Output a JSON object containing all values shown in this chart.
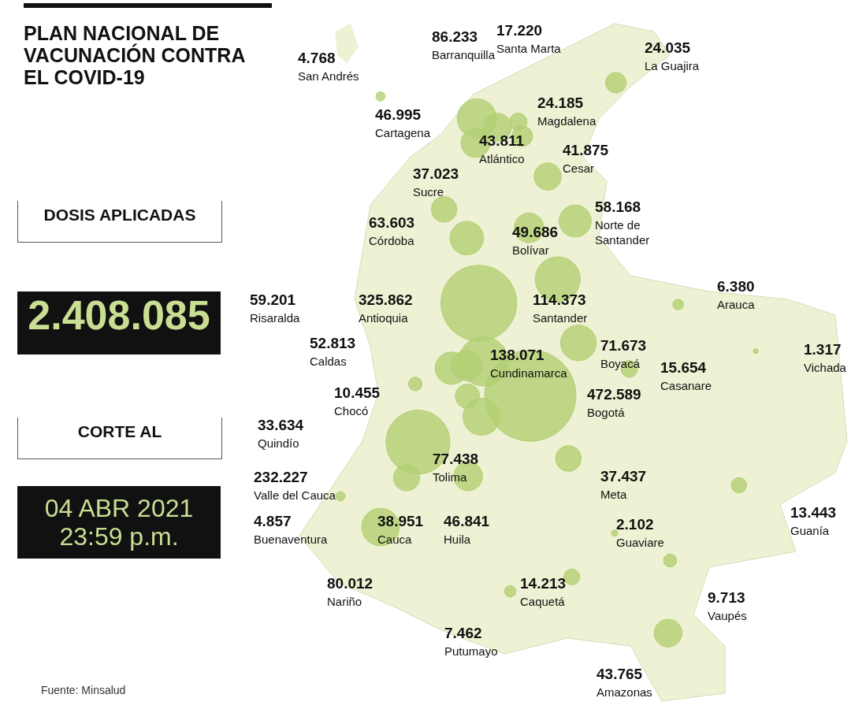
{
  "chart_data": {
    "type": "other",
    "title": "PLAN NACIONAL DE VACUNACIÓN CONTRA EL COVID-19",
    "annotations": [
      "DOSIS APLICADAS",
      "2.408.085",
      "CORTE AL",
      "04 ABR 2021 23:59 p.m.",
      "Fuente: Minsalud"
    ],
    "color": "#b3cf73",
    "categories": [
      "San Andrés",
      "Barranquilla",
      "Santa Marta",
      "La Guajira",
      "Cartagena",
      "Atlántico",
      "Magdalena",
      "Cesar",
      "Sucre",
      "Norte de Santander",
      "Córdoba",
      "Bolívar",
      "Antioquia",
      "Santander",
      "Arauca",
      "Risaralda",
      "Caldas",
      "Cundinamarca",
      "Boyacá",
      "Vichada",
      "Casanare",
      "Chocó",
      "Bogotá",
      "Quindío",
      "Tolima",
      "Valle del Cauca",
      "Meta",
      "Guanía",
      "Buenaventura",
      "Cauca",
      "Huila",
      "Guaviare",
      "Nariño",
      "Caquetá",
      "Vaupés",
      "Putumayo",
      "Amazonas"
    ],
    "values": [
      4768,
      86233,
      17220,
      24035,
      46995,
      43811,
      24185,
      41875,
      37023,
      58168,
      63603,
      49686,
      325862,
      114373,
      6380,
      59201,
      52813,
      138071,
      71673,
      1317,
      15654,
      10455,
      472589,
      33634,
      77438,
      232227,
      37437,
      13443,
      4857,
      38951,
      46841,
      2102,
      80012,
      14213,
      9713,
      7462,
      43765
    ],
    "value_labels": [
      "4.768",
      "86.233",
      "17.220",
      "24.035",
      "46.995",
      "43.811",
      "24.185",
      "41.875",
      "37.023",
      "58.168",
      "63.603",
      "49.686",
      "325.862",
      "114.373",
      "6.380",
      "59.201",
      "52.813",
      "138.071",
      "71.673",
      "1.317",
      "15.654",
      "10.455",
      "472.589",
      "33.634",
      "77.438",
      "232.227",
      "37.437",
      "13.443",
      "4.857",
      "38.951",
      "46.841",
      "2.102",
      "80.012",
      "14.213",
      "9.713",
      "7.462",
      "43.765"
    ]
  }
}
